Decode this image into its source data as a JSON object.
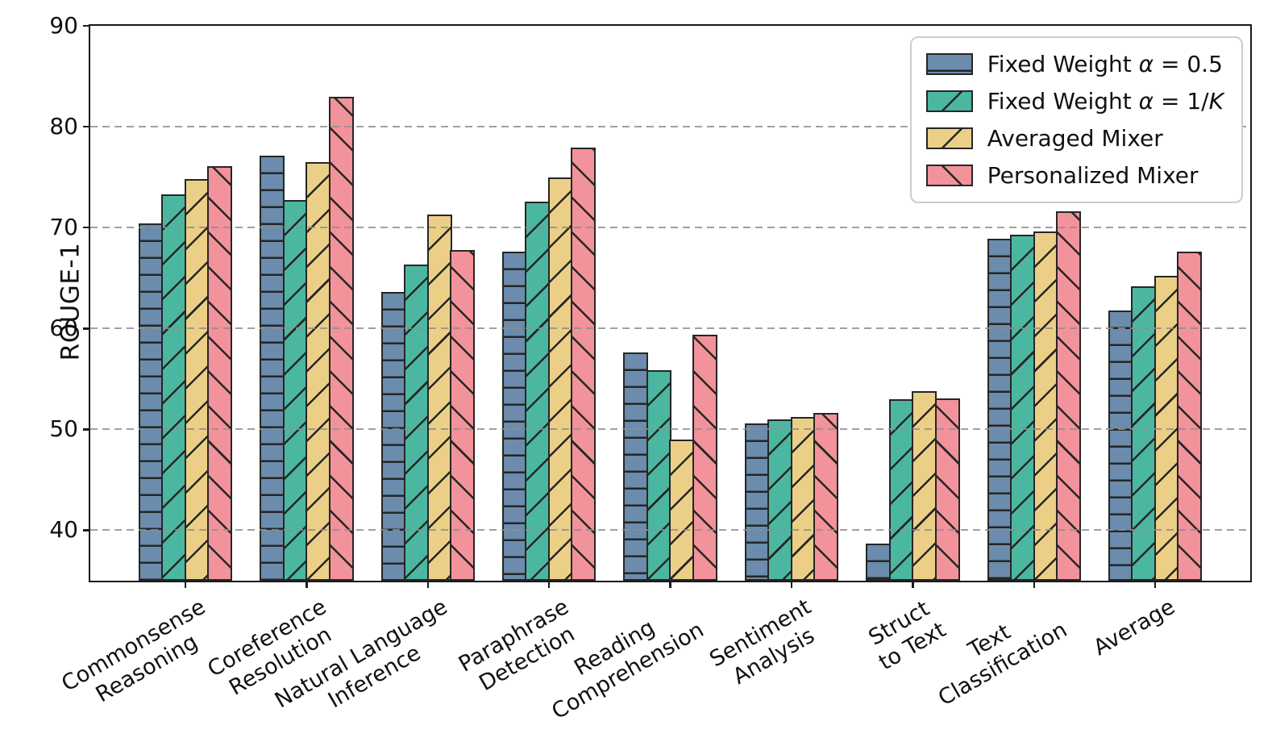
{
  "chart_data": {
    "type": "bar",
    "title": "",
    "ylabel": "ROUGE-1",
    "xlabel": "",
    "ylim": [
      35,
      90
    ],
    "yticks": [
      40,
      50,
      60,
      70,
      80,
      90
    ],
    "grid": {
      "axis": "y",
      "style": "dashed",
      "color": "#8f8f8f"
    },
    "legend_position": "upper right",
    "bar_edge_color": "#262626",
    "categories": [
      "Commonsense\nReasoning",
      "Coreference\nResolution",
      "Natural Language\nInference",
      "Paraphrase\nDetection",
      "Reading\nComprehension",
      "Sentiment\nAnalysis",
      "Struct\nto Text",
      "Text\nClassification",
      "Average"
    ],
    "series": [
      {
        "name": "Fixed Weight α = 0.5",
        "name_segments": [
          {
            "text": "Fixed Weight ",
            "italic": false
          },
          {
            "text": "α",
            "italic": true
          },
          {
            "text": " = 0.5",
            "italic": false
          }
        ],
        "color": "#6B8CAC",
        "hatch": "-",
        "values": [
          70.4,
          77.1,
          63.6,
          67.6,
          57.6,
          50.6,
          38.7,
          68.9,
          61.8
        ]
      },
      {
        "name": "Fixed Weight α = 1/K",
        "name_segments": [
          {
            "text": "Fixed Weight ",
            "italic": false
          },
          {
            "text": "α",
            "italic": true
          },
          {
            "text": " = 1/",
            "italic": false
          },
          {
            "text": "K",
            "italic": true
          }
        ],
        "color": "#4BB7A0",
        "hatch": "/",
        "values": [
          73.3,
          72.7,
          66.3,
          72.6,
          55.9,
          51.0,
          53.0,
          69.3,
          64.2
        ]
      },
      {
        "name": "Averaged Mixer",
        "name_segments": [
          {
            "text": "Averaged Mixer",
            "italic": false
          }
        ],
        "color": "#ECCF87",
        "hatch": "/",
        "values": [
          74.8,
          76.5,
          71.3,
          75.0,
          49.0,
          51.2,
          53.8,
          69.6,
          65.2
        ]
      },
      {
        "name": "Personalized Mixer",
        "name_segments": [
          {
            "text": "Personalized Mixer",
            "italic": false
          }
        ],
        "color": "#F2929B",
        "hatch": "\\",
        "values": [
          76.1,
          83.0,
          67.8,
          77.9,
          59.4,
          51.6,
          53.1,
          71.6,
          67.6
        ]
      }
    ]
  }
}
